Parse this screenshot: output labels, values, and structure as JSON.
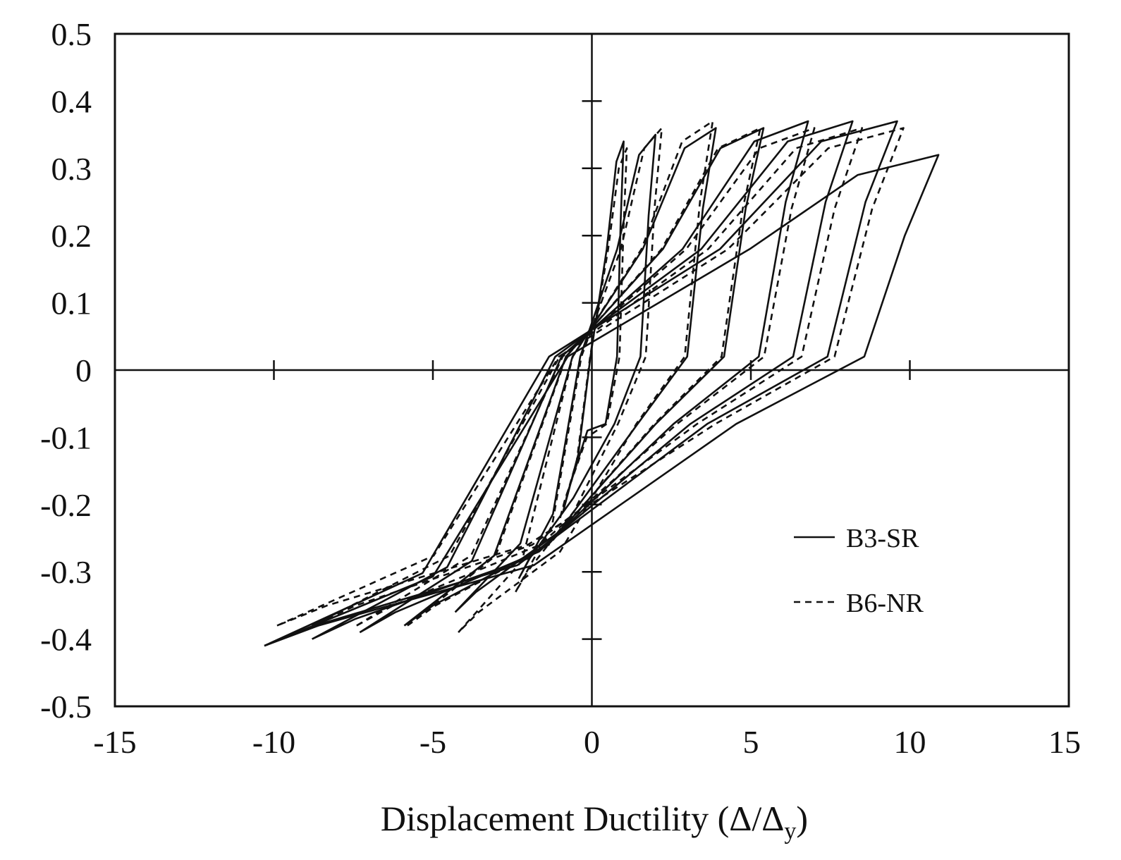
{
  "chart_data": {
    "type": "line",
    "title": "",
    "xlabel": "Displacement Ductility (Δ/Δ",
    "xlabel_subscript": "y",
    "xlabel_close": ")",
    "ylabel": "",
    "xlim": [
      -15,
      15
    ],
    "ylim": [
      -0.5,
      0.5
    ],
    "x_ticks": [
      -15,
      -10,
      -5,
      0,
      5,
      10,
      15
    ],
    "x_tick_labels": [
      "-15",
      "-10",
      "-5",
      "0",
      "5",
      "10",
      "15"
    ],
    "y_ticks": [
      -0.5,
      -0.4,
      -0.3,
      -0.2,
      -0.1,
      0,
      0.1,
      0.2,
      0.3,
      0.4,
      0.5
    ],
    "y_tick_labels": [
      "-0.5",
      "-0.4",
      "-0.3",
      "-0.2",
      "-0.1",
      "0",
      "0.1",
      "0.2",
      "0.3",
      "0.4",
      "0.5"
    ],
    "grid": false,
    "legend_position": "lower-right",
    "series": [
      {
        "name": "B3-SR",
        "style": "solid",
        "color": "#111111",
        "loops": [
          {
            "pos_peak": [
              1.0,
              0.34
            ],
            "neg_peak": [
              -0.9,
              -0.21
            ]
          },
          {
            "pos_peak": [
              2.0,
              0.35
            ],
            "neg_peak": [
              -2.3,
              -0.31
            ]
          },
          {
            "pos_peak": [
              3.9,
              0.36
            ],
            "neg_peak": [
              -4.3,
              -0.36
            ]
          },
          {
            "pos_peak": [
              5.4,
              0.36
            ],
            "neg_peak": [
              -5.9,
              -0.38
            ]
          },
          {
            "pos_peak": [
              6.8,
              0.37
            ],
            "neg_peak": [
              -7.3,
              -0.39
            ]
          },
          {
            "pos_peak": [
              8.2,
              0.37
            ],
            "neg_peak": [
              -8.8,
              -0.4
            ]
          },
          {
            "pos_peak": [
              9.6,
              0.37
            ],
            "neg_peak": [
              -10.3,
              -0.41
            ]
          },
          {
            "pos_peak": [
              10.9,
              0.32
            ],
            "neg_peak": [
              -10.3,
              -0.41
            ]
          }
        ]
      },
      {
        "name": "B6-NR",
        "style": "dashed",
        "color": "#111111",
        "loops": [
          {
            "pos_peak": [
              1.1,
              0.33
            ],
            "neg_peak": [
              -1.0,
              -0.22
            ]
          },
          {
            "pos_peak": [
              2.2,
              0.36
            ],
            "neg_peak": [
              -2.4,
              -0.33
            ]
          },
          {
            "pos_peak": [
              3.8,
              0.37
            ],
            "neg_peak": [
              -4.2,
              -0.39
            ]
          },
          {
            "pos_peak": [
              5.3,
              0.36
            ],
            "neg_peak": [
              -5.8,
              -0.38
            ]
          },
          {
            "pos_peak": [
              7.0,
              0.36
            ],
            "neg_peak": [
              -7.4,
              -0.38
            ]
          },
          {
            "pos_peak": [
              8.5,
              0.36
            ],
            "neg_peak": [
              -8.8,
              -0.38
            ]
          },
          {
            "pos_peak": [
              9.8,
              0.36
            ],
            "neg_peak": [
              -9.9,
              -0.38
            ]
          }
        ]
      }
    ]
  }
}
